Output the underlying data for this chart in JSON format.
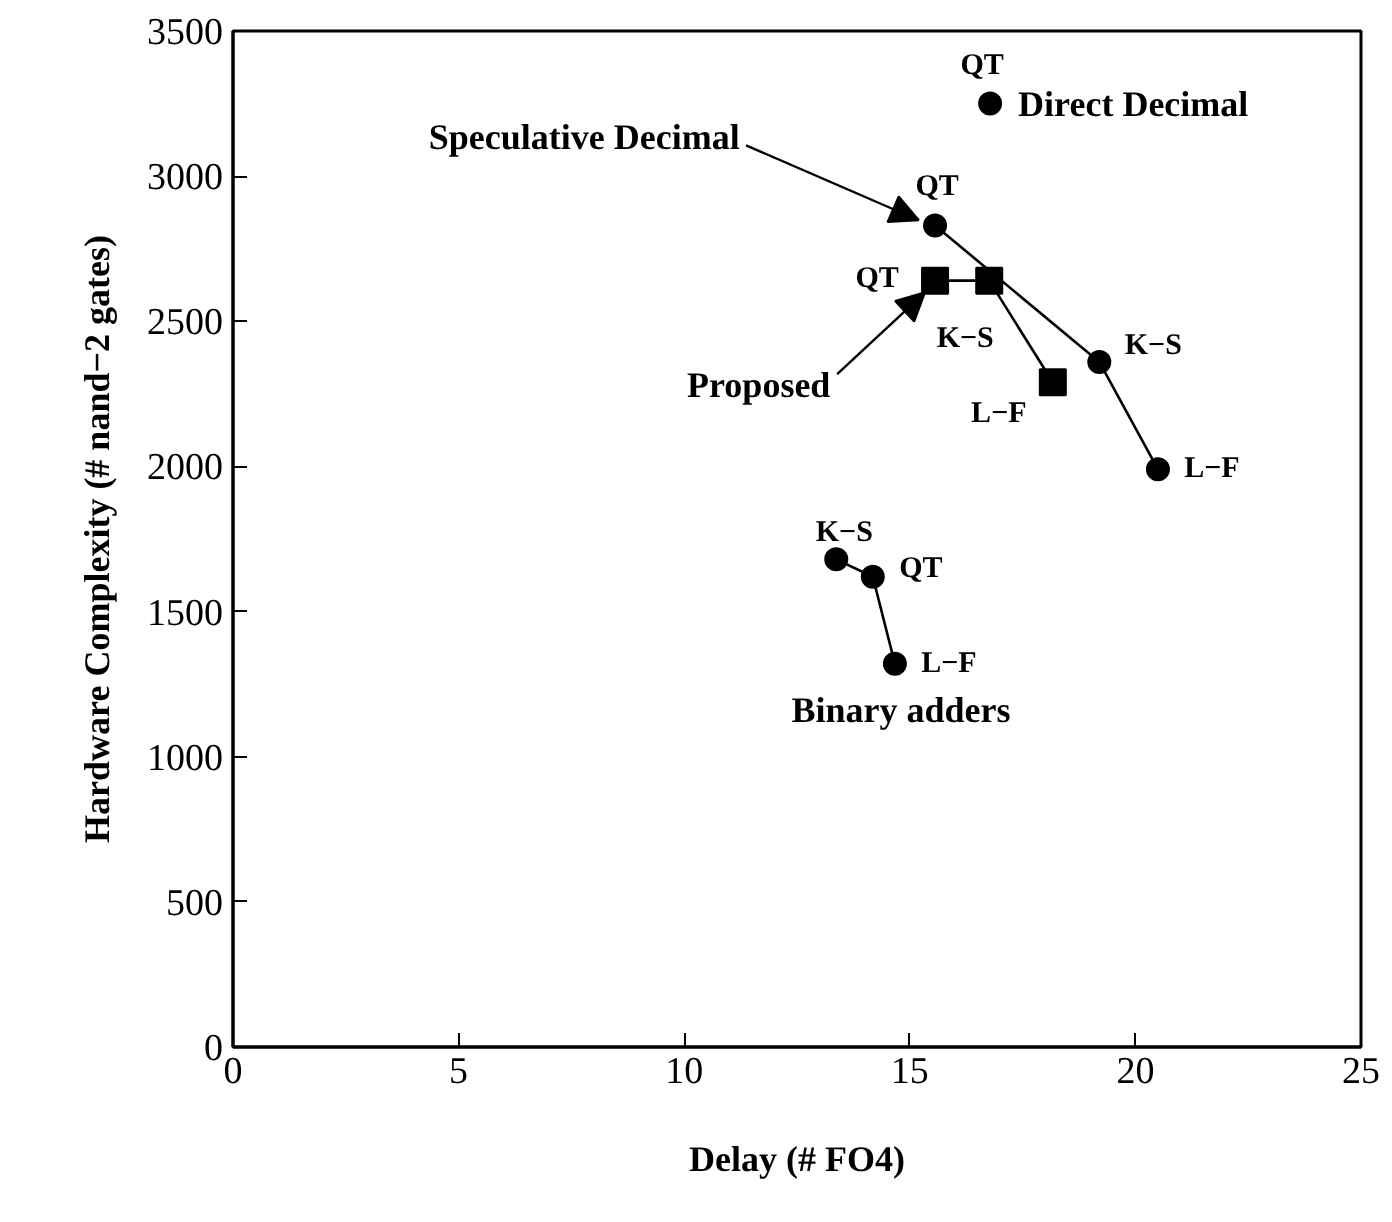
{
  "chart_data": {
    "type": "line",
    "xlabel": "Delay (# FO4)",
    "ylabel": "Hardware Complexity (# nand−2 gates)",
    "xlim": [
      0,
      25
    ],
    "xticks": [
      0,
      5,
      10,
      15,
      20,
      25
    ],
    "ylim": [
      0,
      3500
    ],
    "yticks": [
      0,
      500,
      1000,
      1500,
      2000,
      2500,
      3000,
      3500
    ],
    "grid": false,
    "series": [
      {
        "name": "Direct Decimal",
        "type": "scatter",
        "marker": "circle",
        "color": "#000000",
        "x": [
          16.78
        ],
        "values": [
          3250
        ]
      },
      {
        "name": "Speculative Decimal",
        "marker": "circle",
        "color": "#000000",
        "x": [
          15.56,
          19.2,
          20.5
        ],
        "values": [
          2830,
          2360,
          1990
        ]
      },
      {
        "name": "Proposed",
        "marker": "square",
        "color": "#000000",
        "x": [
          15.56,
          16.76,
          18.17
        ],
        "values": [
          2640,
          2640,
          2290
        ]
      },
      {
        "name": "Binary adders",
        "marker": "circle",
        "color": "#000000",
        "x": [
          13.37,
          14.18,
          14.67
        ],
        "values": [
          1680,
          1620,
          1320
        ]
      }
    ],
    "annotations": [
      {
        "text": "QT",
        "x": 16.78,
        "y": 3250
      },
      {
        "text": "QT",
        "x": 15.56,
        "y": 2830
      },
      {
        "text": "K−S",
        "x": 19.2,
        "y": 2360
      },
      {
        "text": "L−F",
        "x": 20.5,
        "y": 1990
      },
      {
        "text": "QT",
        "x": 15.56,
        "y": 2640
      },
      {
        "text": "K−S",
        "x": 16.76,
        "y": 2640
      },
      {
        "text": "L−F",
        "x": 18.17,
        "y": 2290
      },
      {
        "text": "K−S",
        "x": 13.37,
        "y": 1680
      },
      {
        "text": "QT",
        "x": 14.18,
        "y": 1620
      },
      {
        "text": "L−F",
        "x": 14.67,
        "y": 1320
      }
    ]
  }
}
